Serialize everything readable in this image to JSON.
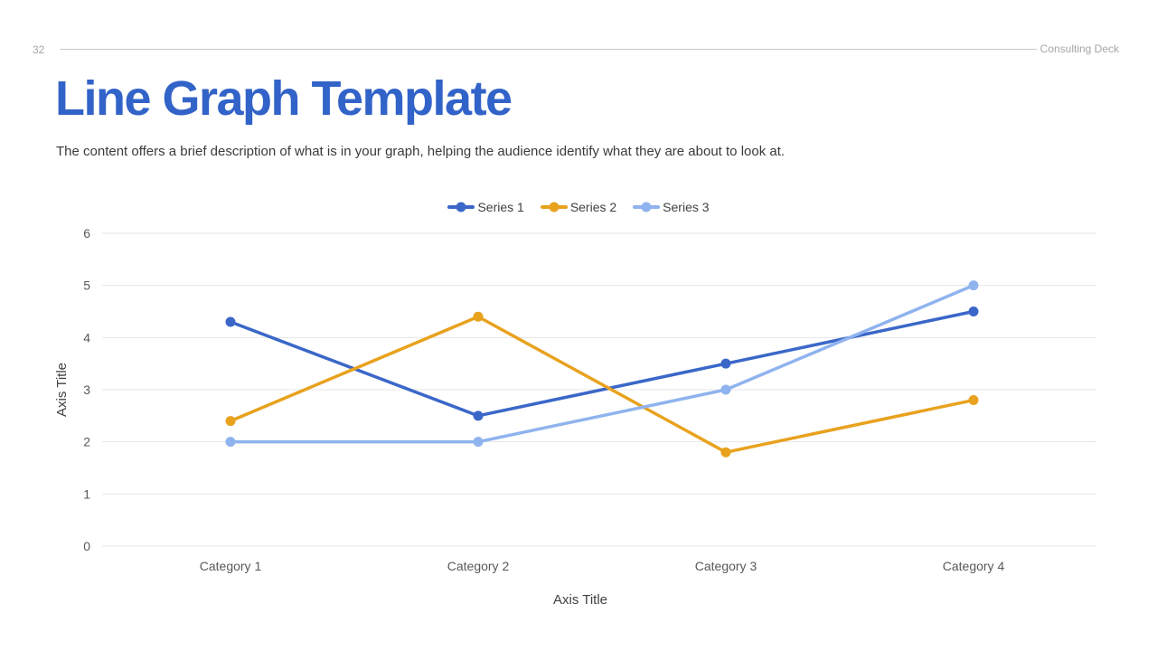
{
  "header": {
    "page_number": "32",
    "brand": "Consulting Deck"
  },
  "title": "Line Graph Template",
  "description": "The content offers a brief description of what is in your graph, helping the audience identify what they are about to look at.",
  "chart_data": {
    "type": "line",
    "categories": [
      "Category 1",
      "Category 2",
      "Category 3",
      "Category 4"
    ],
    "series": [
      {
        "name": "Series 1",
        "color": "#3A67C8",
        "values": [
          4.3,
          2.5,
          3.5,
          4.5
        ]
      },
      {
        "name": "Series 2",
        "color": "#E8A21E",
        "values": [
          2.4,
          4.4,
          1.8,
          2.8
        ]
      },
      {
        "name": "Series 3",
        "color": "#8FB3EE",
        "values": [
          2.0,
          2.0,
          3.0,
          5.0
        ]
      }
    ],
    "xlabel": "Axis Title",
    "ylabel": "Axis Title",
    "ylim": [
      0,
      6
    ],
    "ytick_step": 1,
    "grid": true,
    "legend_position": "top",
    "gridline_color": "#e4e4e4",
    "tick_label_color": "#595959",
    "axis_title_color": "#404040"
  },
  "colors": {
    "accent": "#3263C8",
    "muted_text": "#a6a6a6",
    "header_line": "#c9c9c9"
  }
}
